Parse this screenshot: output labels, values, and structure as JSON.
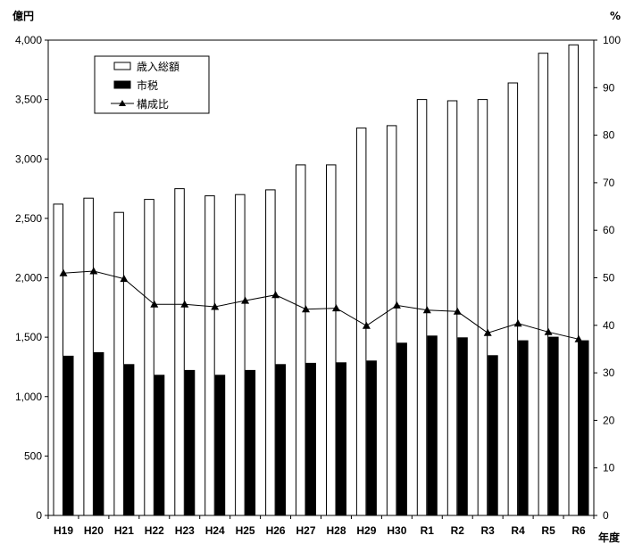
{
  "chart_data": {
    "type": "bar",
    "title": "",
    "y_left_unit": "億円",
    "y_right_unit": "%",
    "x_unit": "年度",
    "categories": [
      "H19",
      "H20",
      "H21",
      "H22",
      "H23",
      "H24",
      "H25",
      "H26",
      "H27",
      "H28",
      "H29",
      "H30",
      "R1",
      "R2",
      "R3",
      "R4",
      "R5",
      "R6"
    ],
    "series": [
      {
        "name": "歳入総額",
        "kind": "bar",
        "axis": "left",
        "fill": "#ffffff",
        "values": [
          2620,
          2670,
          2550,
          2660,
          2750,
          2690,
          2700,
          2740,
          2950,
          2950,
          3260,
          3280,
          3500,
          3490,
          3500,
          3640,
          3890,
          3960
        ]
      },
      {
        "name": "市税",
        "kind": "bar",
        "axis": "left",
        "fill": "#000000",
        "values": [
          1340,
          1370,
          1270,
          1180,
          1220,
          1180,
          1220,
          1270,
          1280,
          1285,
          1300,
          1450,
          1510,
          1495,
          1345,
          1470,
          1500,
          1470
        ]
      },
      {
        "name": "構成比",
        "kind": "line",
        "axis": "right",
        "marker": "triangle",
        "values": [
          51.0,
          51.4,
          49.8,
          44.4,
          44.4,
          43.9,
          45.2,
          46.4,
          43.4,
          43.6,
          39.9,
          44.2,
          43.2,
          42.9,
          38.4,
          40.4,
          38.6,
          37.1
        ]
      }
    ],
    "y_left": {
      "min": 0,
      "max": 4000,
      "ticks": [
        "0",
        "500",
        "1,000",
        "1,500",
        "2,000",
        "2,500",
        "3,000",
        "3,500",
        "4,000"
      ]
    },
    "y_right": {
      "min": 0,
      "max": 100,
      "ticks": [
        "0",
        "10",
        "20",
        "30",
        "40",
        "50",
        "60",
        "70",
        "80",
        "90",
        "100"
      ]
    },
    "grid": false,
    "legend_position": "top-left"
  }
}
